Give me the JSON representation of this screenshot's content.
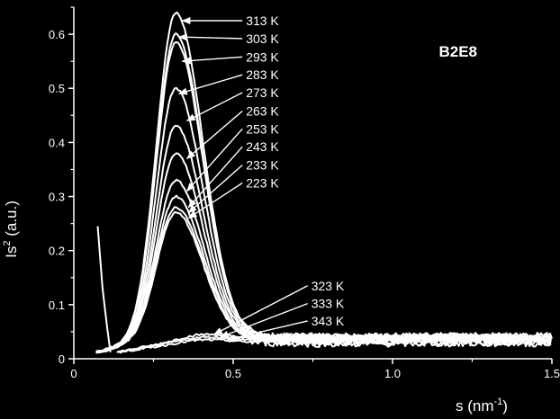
{
  "chart_data": {
    "type": "line",
    "title": "",
    "sample_label": "B2E8",
    "xlabel": "s (nm",
    "xlabel_sup": "-1",
    "xlabel_tail": ")",
    "ylabel": "Is",
    "ylabel_sup": "2",
    "ylabel_tail": " (a.u.)",
    "xlim": [
      0,
      1.5
    ],
    "ylim": [
      0,
      0.65
    ],
    "xticks": [
      {
        "v": 0,
        "label": "0"
      },
      {
        "v": 0.5,
        "label": "0.5"
      },
      {
        "v": 1.0,
        "label": "1.0"
      },
      {
        "v": 1.5,
        "label": "1.5"
      }
    ],
    "yticks": [
      {
        "v": 0,
        "label": "0"
      },
      {
        "v": 0.1,
        "label": "0.1"
      },
      {
        "v": 0.2,
        "label": "0.2"
      },
      {
        "v": 0.3,
        "label": "0.3"
      },
      {
        "v": 0.4,
        "label": "0.4"
      },
      {
        "v": 0.5,
        "label": "0.5"
      },
      {
        "v": 0.6,
        "label": "0.6"
      }
    ],
    "grid": false,
    "line_color": "#ffffff",
    "background": "#000000",
    "series": [
      {
        "name": "313 K",
        "kind": "peak",
        "peak": 0.64,
        "start": 0.09,
        "tail": 0.03
      },
      {
        "name": "303 K",
        "kind": "peak",
        "peak": 0.6,
        "start": 0.08,
        "tail": 0.03
      },
      {
        "name": "293 K",
        "kind": "peak",
        "peak": 0.585,
        "start": 0.075,
        "tail": 0.03
      },
      {
        "name": "283 K",
        "kind": "peak",
        "peak": 0.5,
        "start": 0.07,
        "tail": 0.028
      },
      {
        "name": "273 K",
        "kind": "peak",
        "peak": 0.43,
        "start": 0.07,
        "tail": 0.027
      },
      {
        "name": "263 K",
        "kind": "peak",
        "peak": 0.38,
        "start": 0.07,
        "tail": 0.026
      },
      {
        "name": "253 K",
        "kind": "peak",
        "peak": 0.33,
        "start": 0.07,
        "tail": 0.025
      },
      {
        "name": "243 K",
        "kind": "peak",
        "peak": 0.3,
        "start": 0.07,
        "tail": 0.025
      },
      {
        "name": "233 K",
        "kind": "peak",
        "peak": 0.28,
        "start": 0.07,
        "tail": 0.024
      },
      {
        "name": "223 K",
        "kind": "peak",
        "peak": 0.27,
        "start": 0.07,
        "tail": 0.024
      },
      {
        "name": "323 K",
        "kind": "flat",
        "peak": 0.045,
        "start": 0.135,
        "tail": 0.02
      },
      {
        "name": "333 K",
        "kind": "flat",
        "peak": 0.04,
        "start": 0.14,
        "tail": 0.018
      },
      {
        "name": "343 K",
        "kind": "flat",
        "peak": 0.035,
        "start": 0.14,
        "tail": 0.016
      }
    ],
    "upturn": {
      "x": [
        0.075,
        0.09,
        0.105,
        0.115
      ],
      "y": [
        0.245,
        0.13,
        0.055,
        0.012
      ]
    },
    "labels": [
      {
        "text": "313 K",
        "lx": 0.54,
        "ly": 0.625,
        "tx": 0.34,
        "ty": 0.625
      },
      {
        "text": "303 K",
        "lx": 0.54,
        "ly": 0.592,
        "tx": 0.33,
        "ty": 0.595
      },
      {
        "text": "293 K",
        "lx": 0.54,
        "ly": 0.558,
        "tx": 0.34,
        "ty": 0.55
      },
      {
        "text": "283 K",
        "lx": 0.54,
        "ly": 0.525,
        "tx": 0.33,
        "ty": 0.49
      },
      {
        "text": "273 K",
        "lx": 0.54,
        "ly": 0.492,
        "tx": 0.355,
        "ty": 0.44
      },
      {
        "text": "263 K",
        "lx": 0.54,
        "ly": 0.458,
        "tx": 0.355,
        "ty": 0.37
      },
      {
        "text": "253 K",
        "lx": 0.54,
        "ly": 0.425,
        "tx": 0.355,
        "ty": 0.31
      },
      {
        "text": "243 K",
        "lx": 0.54,
        "ly": 0.392,
        "tx": 0.36,
        "ty": 0.28
      },
      {
        "text": "233 K",
        "lx": 0.54,
        "ly": 0.358,
        "tx": 0.36,
        "ty": 0.27
      },
      {
        "text": "223 K",
        "lx": 0.54,
        "ly": 0.325,
        "tx": 0.36,
        "ty": 0.26
      },
      {
        "text": "323 K",
        "lx": 0.745,
        "ly": 0.135,
        "tx": 0.44,
        "ty": 0.045
      },
      {
        "text": "333 K",
        "lx": 0.745,
        "ly": 0.102,
        "tx": 0.46,
        "ty": 0.04
      },
      {
        "text": "343 K",
        "lx": 0.745,
        "ly": 0.07,
        "tx": 0.48,
        "ty": 0.035
      }
    ]
  }
}
